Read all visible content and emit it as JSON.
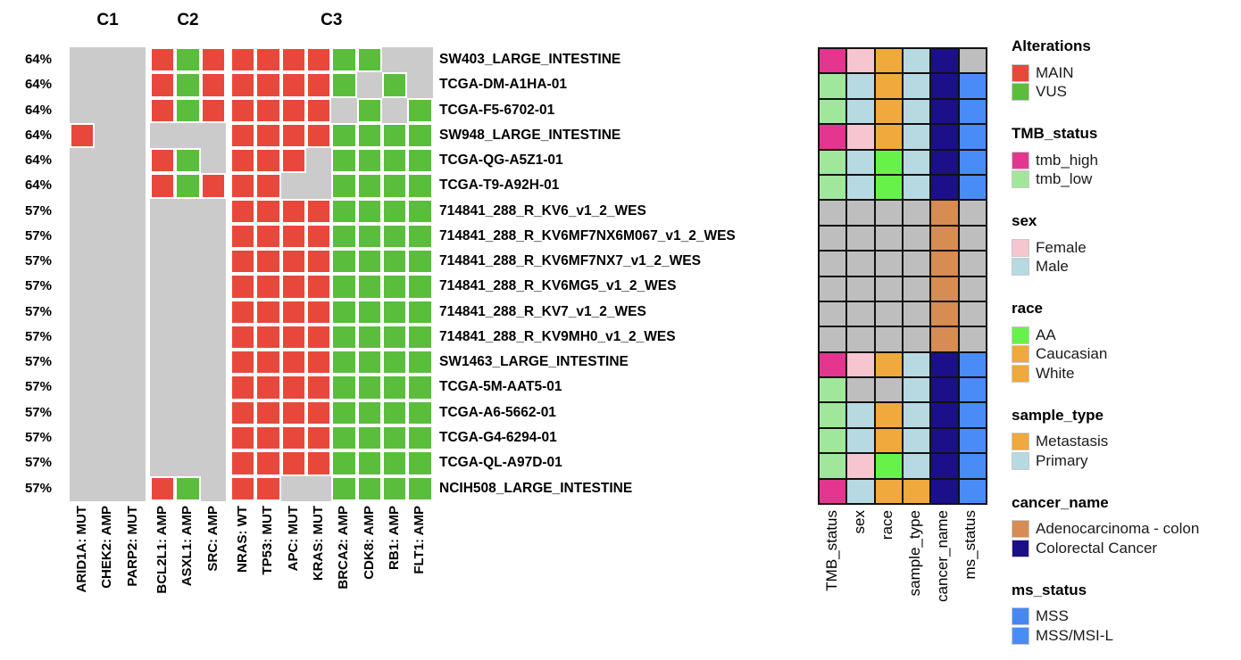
{
  "chart_data": {
    "type": "heatmap",
    "subtype": "oncoprint-with-clinical-annotations",
    "cluster_headers": [
      {
        "label": "C1",
        "genes": 3
      },
      {
        "label": "C2",
        "genes": 3
      },
      {
        "label": "C3",
        "genes": 8
      }
    ],
    "gene_columns": [
      "ARID1A: MUT",
      "CHEK2: AMP",
      "PARP2: MUT",
      "BCL2L1: AMP",
      "ASXL1: AMP",
      "SRC: AMP",
      "NRAS: WT",
      "TP53: MUT",
      "APC: MUT",
      "KRAS: MUT",
      "BRCA2: AMP",
      "CDK8: AMP",
      "RB1: AMP",
      "FLT1: AMP"
    ],
    "alteration_codes": {
      "M": "MAIN",
      "V": "VUS",
      ".": "none"
    },
    "alteration_palette": {
      "M": "#E8483C",
      "V": "#5ABD3C",
      "background": "#CBCBCB"
    },
    "annotation_columns": [
      "TMB_status",
      "sex",
      "race",
      "sample_type",
      "cancer_name",
      "ms_status"
    ],
    "annotation_palette": {
      "tmb_high": "#E5368F",
      "tmb_low": "#A0E79B",
      "Female": "#F6C5D0",
      "Male": "#B7D9E2",
      "orange": "#EFA93C",
      "AA": "#67F24A",
      "Primary": "#B7D9E2",
      "Metastasis": "#EFA93C",
      "adeno": "#D68C52",
      "crc": "#1B1089",
      "mss": "#4A8CF7",
      "na": "#BEBEBE"
    },
    "rows": [
      {
        "pct": "64%",
        "sample": "SW403_LARGE_INTESTINE",
        "alterations": "...MVMMMMMVV..",
        "annotations": [
          "tmb_high",
          "Female",
          "orange",
          "Primary",
          "crc",
          "na"
        ]
      },
      {
        "pct": "64%",
        "sample": "TCGA-DM-A1HA-01",
        "alterations": "...MVMMMMMV.V.",
        "annotations": [
          "tmb_low",
          "Male",
          "orange",
          "Primary",
          "crc",
          "mss"
        ]
      },
      {
        "pct": "64%",
        "sample": "TCGA-F5-6702-01",
        "alterations": "...MVMMMMM.V.V",
        "annotations": [
          "tmb_low",
          "Male",
          "orange",
          "Primary",
          "crc",
          "mss"
        ]
      },
      {
        "pct": "64%",
        "sample": "SW948_LARGE_INTESTINE",
        "alterations": "M.....MMMMVVVV",
        "annotations": [
          "tmb_high",
          "Female",
          "orange",
          "Primary",
          "crc",
          "mss"
        ]
      },
      {
        "pct": "64%",
        "sample": "TCGA-QG-A5Z1-01",
        "alterations": "...MV.MMM.VVVV",
        "annotations": [
          "tmb_low",
          "Male",
          "AA",
          "Primary",
          "crc",
          "mss"
        ]
      },
      {
        "pct": "64%",
        "sample": "TCGA-T9-A92H-01",
        "alterations": "...MVMMM..VVVV",
        "annotations": [
          "tmb_low",
          "Male",
          "AA",
          "Primary",
          "crc",
          "mss"
        ]
      },
      {
        "pct": "57%",
        "sample": "714841_288_R_KV6_v1_2_WES",
        "alterations": "......MMMMVVVV",
        "annotations": [
          "na",
          "na",
          "na",
          "na",
          "adeno",
          "na"
        ]
      },
      {
        "pct": "57%",
        "sample": "714841_288_R_KV6MF7NX6M067_v1_2_WES",
        "alterations": "......MMMMVVVV",
        "annotations": [
          "na",
          "na",
          "na",
          "na",
          "adeno",
          "na"
        ]
      },
      {
        "pct": "57%",
        "sample": "714841_288_R_KV6MF7NX7_v1_2_WES",
        "alterations": "......MMMMVVVV",
        "annotations": [
          "na",
          "na",
          "na",
          "na",
          "adeno",
          "na"
        ]
      },
      {
        "pct": "57%",
        "sample": "714841_288_R_KV6MG5_v1_2_WES",
        "alterations": "......MMMMVVVV",
        "annotations": [
          "na",
          "na",
          "na",
          "na",
          "adeno",
          "na"
        ]
      },
      {
        "pct": "57%",
        "sample": "714841_288_R_KV7_v1_2_WES",
        "alterations": "......MMMMVVVV",
        "annotations": [
          "na",
          "na",
          "na",
          "na",
          "adeno",
          "na"
        ]
      },
      {
        "pct": "57%",
        "sample": "714841_288_R_KV9MH0_v1_2_WES",
        "alterations": "......MMMMVVVV",
        "annotations": [
          "na",
          "na",
          "na",
          "na",
          "adeno",
          "na"
        ]
      },
      {
        "pct": "57%",
        "sample": "SW1463_LARGE_INTESTINE",
        "alterations": "......MMMMVVVV",
        "annotations": [
          "tmb_high",
          "Female",
          "orange",
          "Primary",
          "crc",
          "mss"
        ]
      },
      {
        "pct": "57%",
        "sample": "TCGA-5M-AAT5-01",
        "alterations": "......MMMMVVVV",
        "annotations": [
          "tmb_low",
          "na",
          "na",
          "Primary",
          "crc",
          "mss"
        ]
      },
      {
        "pct": "57%",
        "sample": "TCGA-A6-5662-01",
        "alterations": "......MMMMVVVV",
        "annotations": [
          "tmb_low",
          "Male",
          "orange",
          "Primary",
          "crc",
          "mss"
        ]
      },
      {
        "pct": "57%",
        "sample": "TCGA-G4-6294-01",
        "alterations": "......MMMMVVVV",
        "annotations": [
          "tmb_low",
          "Male",
          "orange",
          "Primary",
          "crc",
          "mss"
        ]
      },
      {
        "pct": "57%",
        "sample": "TCGA-QL-A97D-01",
        "alterations": "......MMMMVVVV",
        "annotations": [
          "tmb_low",
          "Female",
          "AA",
          "Primary",
          "crc",
          "mss"
        ]
      },
      {
        "pct": "57%",
        "sample": "NCIH508_LARGE_INTESTINE",
        "alterations": "...MV.MM..VVVV",
        "annotations": [
          "tmb_high",
          "Male",
          "orange",
          "Metastasis",
          "crc",
          "mss"
        ]
      }
    ]
  },
  "legend": {
    "sections": [
      {
        "title": "Alterations",
        "items": [
          {
            "label": "MAIN",
            "color": "#E8483C"
          },
          {
            "label": "VUS",
            "color": "#5ABD3C"
          }
        ]
      },
      {
        "title": "TMB_status",
        "items": [
          {
            "label": "tmb_high",
            "color": "#E5368F"
          },
          {
            "label": "tmb_low",
            "color": "#A0E79B"
          }
        ]
      },
      {
        "title": "sex",
        "items": [
          {
            "label": "Female",
            "color": "#F6C5D0"
          },
          {
            "label": "Male",
            "color": "#B7D9E2"
          }
        ]
      },
      {
        "title": "race",
        "items": [
          {
            "label": "AA",
            "color": "#67F24A"
          },
          {
            "label": "Caucasian",
            "color": "#EFA93C"
          },
          {
            "label": "White",
            "color": "#EFA93C"
          }
        ]
      },
      {
        "title": "sample_type",
        "items": [
          {
            "label": "Metastasis",
            "color": "#EFA93C"
          },
          {
            "label": "Primary",
            "color": "#B7D9E2"
          }
        ]
      },
      {
        "title": "cancer_name",
        "items": [
          {
            "label": "Adenocarcinoma - colon",
            "color": "#D68C52"
          },
          {
            "label": "Colorectal Cancer",
            "color": "#1B1089"
          }
        ]
      },
      {
        "title": "ms_status",
        "items": [
          {
            "label": "MSS",
            "color": "#4687F2"
          },
          {
            "label": "MSS/MSI-L",
            "color": "#4A8CF7"
          }
        ]
      }
    ]
  }
}
